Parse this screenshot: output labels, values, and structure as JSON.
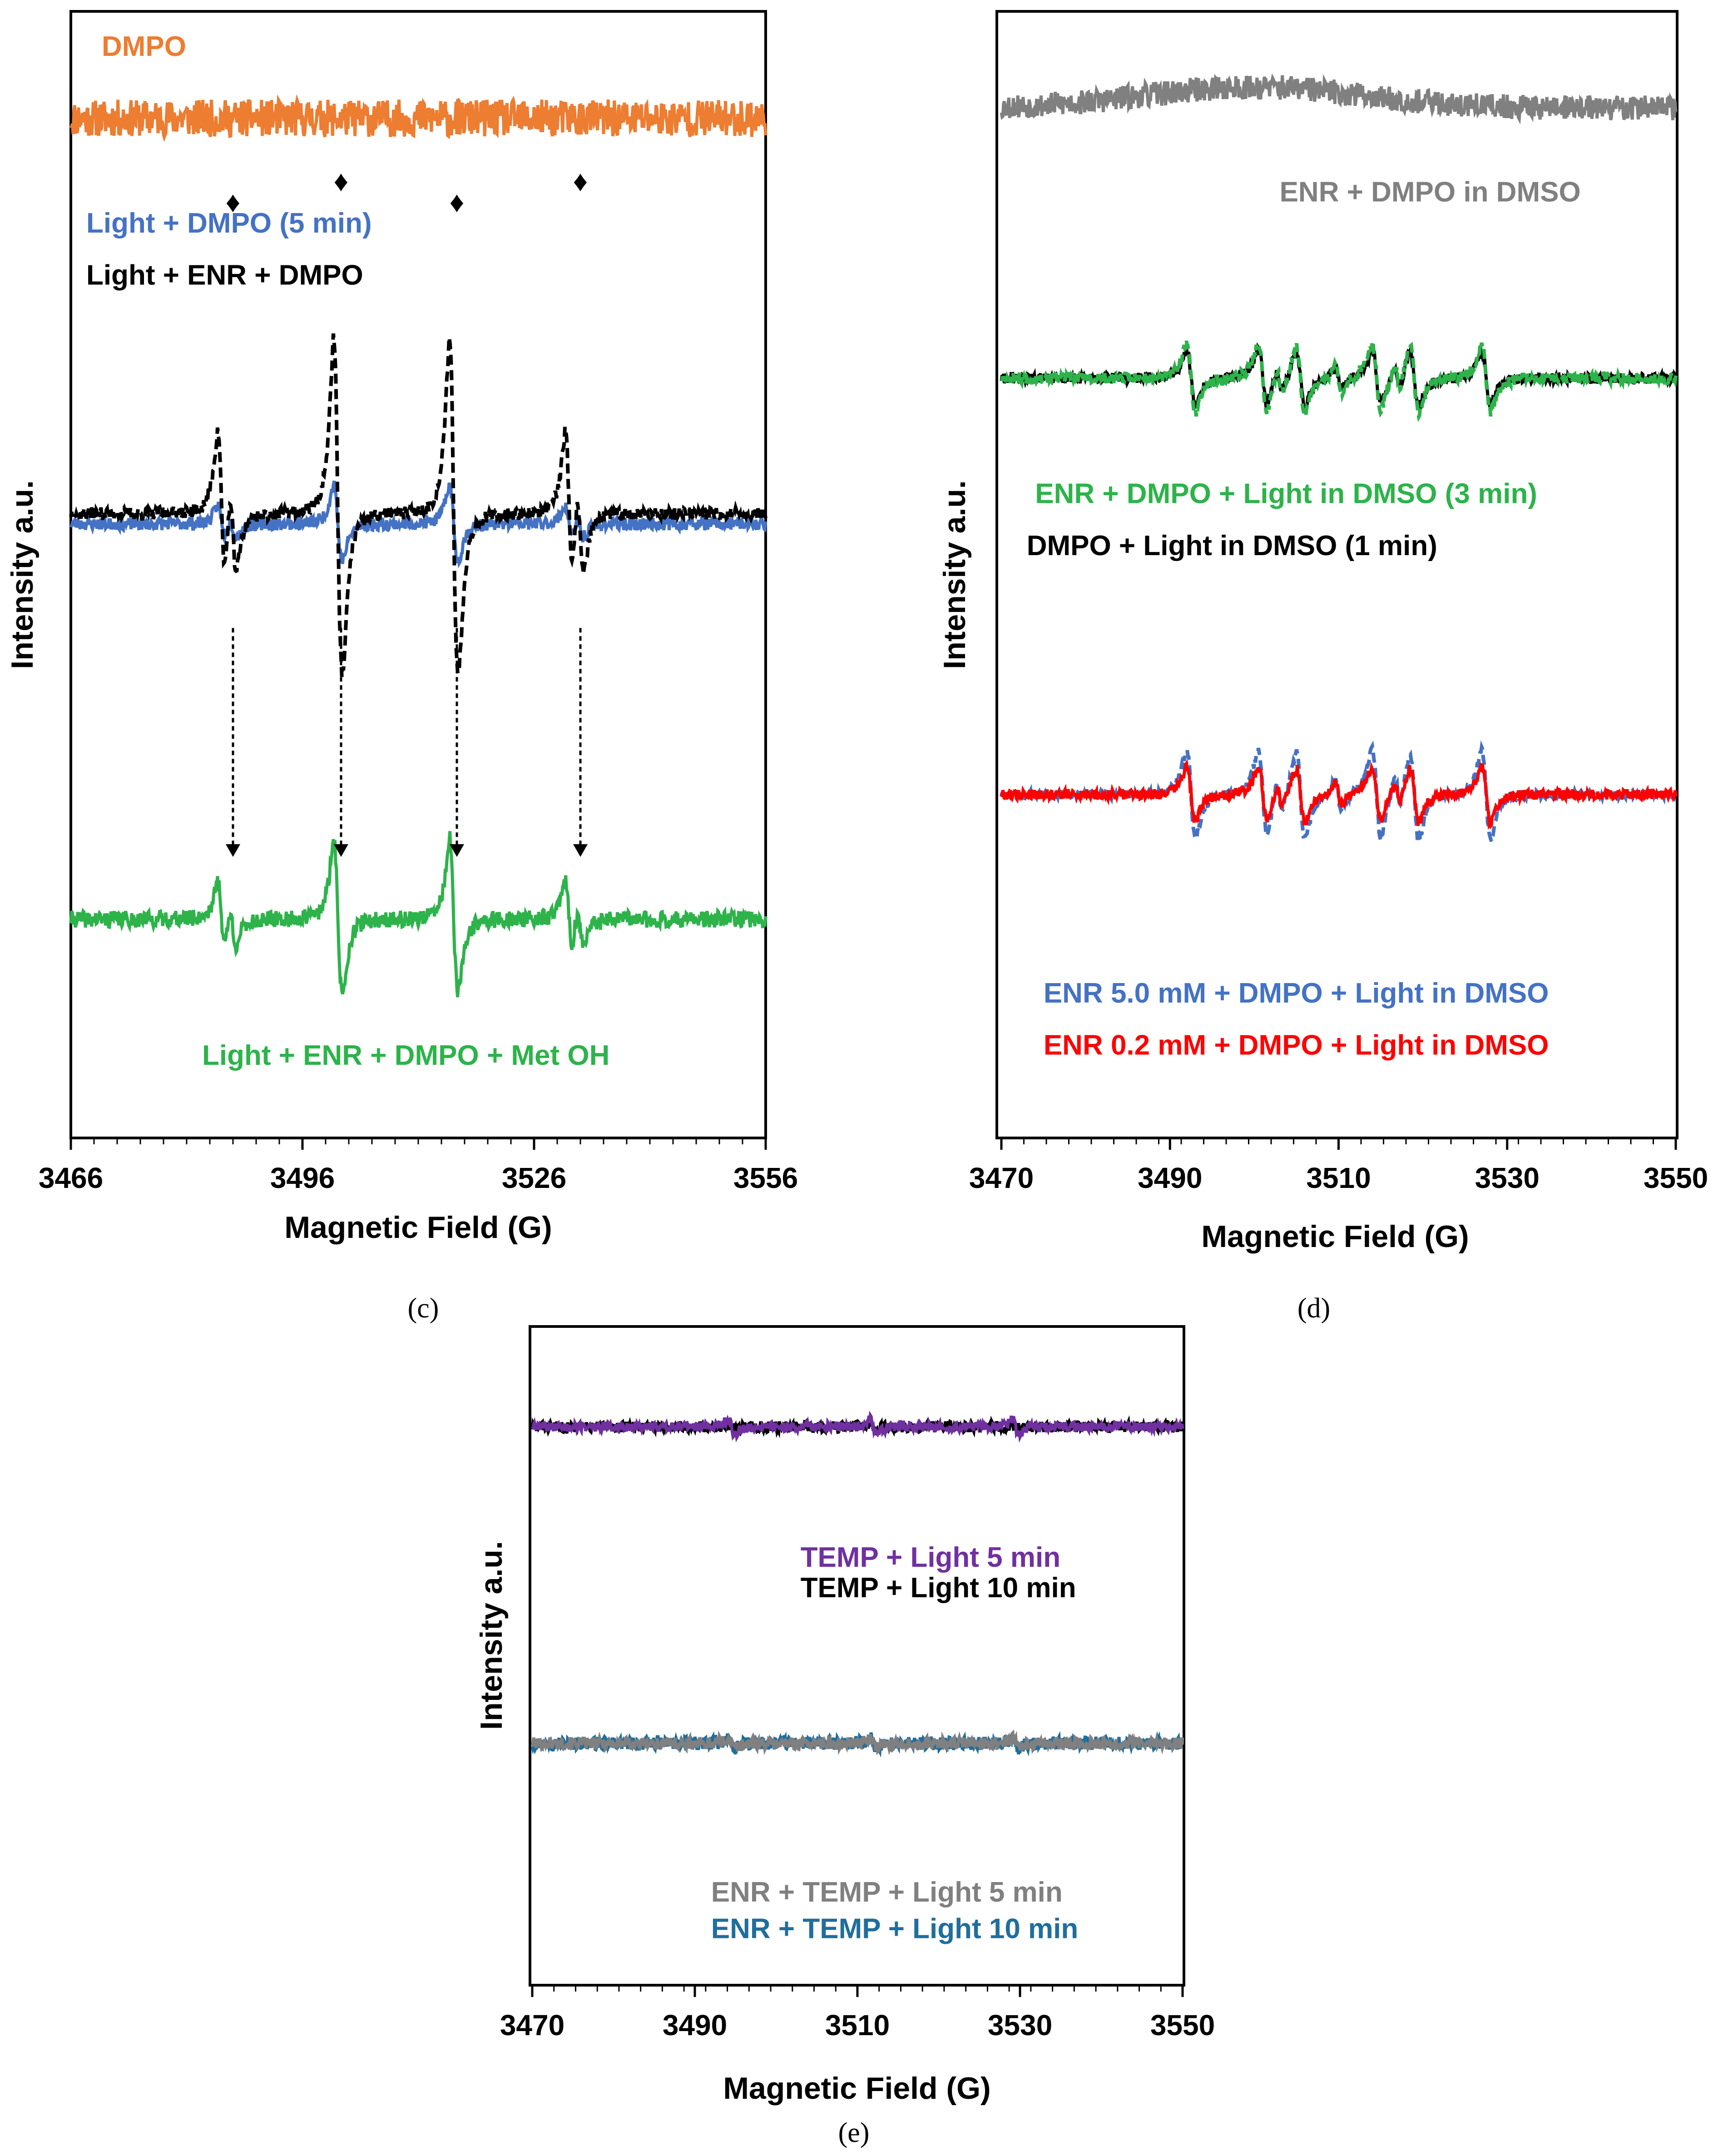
{
  "colors": {
    "orange": "#ED7D31",
    "blue": "#4472C4",
    "black": "#000000",
    "green": "#2DB34A",
    "gray": "#808080",
    "red": "#FF0000",
    "purple": "#7030A0",
    "teal": "#1F6E9C"
  },
  "chart_data": [
    {
      "id": "c",
      "type": "line",
      "caption": "(c)",
      "xlabel": "Magnetic Field (G)",
      "ylabel": "Intensity a.u.",
      "xlim": [
        3466,
        3556
      ],
      "xticks": [
        "3466",
        "3496",
        "3526",
        "3556"
      ],
      "xtick_values": [
        3466,
        3496,
        3526,
        3556
      ],
      "ylim": [
        0,
        100
      ],
      "markers": [
        "♦",
        "♦",
        "♦",
        "♦"
      ],
      "marker_x": [
        3487,
        3501,
        3516,
        3532
      ],
      "series": [
        {
          "name": "DMPO",
          "color": "orange",
          "style": "solid",
          "baseline": 93,
          "type": "noise",
          "noise": 1.8,
          "seed": 11
        },
        {
          "name": "Light + DMPO (5 min)",
          "color": "blue",
          "style": "solid",
          "baseline": 54,
          "type": "dmpo_oh",
          "center": 3508,
          "aN": 15,
          "amp": 5,
          "noise": 0.6,
          "seed": 23
        },
        {
          "name": "Light + ENR + DMPO",
          "color": "black",
          "style": "dashed",
          "baseline": 55,
          "type": "dmpo_oh",
          "center": 3508,
          "aN": 15,
          "amp": 22,
          "noise": 0.6,
          "seed": 37
        },
        {
          "name": "Light + ENR + DMPO + Met OH",
          "color": "green",
          "style": "solid",
          "baseline": 16,
          "type": "dmpo_oh",
          "center": 3508,
          "aN": 15,
          "amp": 10,
          "noise": 0.8,
          "seed": 41
        }
      ],
      "labels": [
        {
          "text": "DMPO",
          "color": "orange",
          "x": 3470,
          "y": 99
        },
        {
          "text": "Light + DMPO (5 min)",
          "color": "blue",
          "x": 3468,
          "y": 82
        },
        {
          "text": "Light + ENR + DMPO",
          "color": "black",
          "x": 3468,
          "y": 77
        },
        {
          "text": "Light + ENR + DMPO + Met OH",
          "color": "green",
          "x": 3483,
          "y": 2
        }
      ]
    },
    {
      "id": "d",
      "type": "line",
      "caption": "(d)",
      "xlabel": "Magnetic Field (G)",
      "ylabel": "Intensity a.u.",
      "xlim": [
        3470,
        3550
      ],
      "xticks": [
        "3470",
        "3490",
        "3510",
        "3530",
        "3550"
      ],
      "xtick_values": [
        3470,
        3490,
        3510,
        3530,
        3550
      ],
      "ylim": [
        0,
        100
      ],
      "series": [
        {
          "name": "ENR + DMPO in DMSO",
          "color": "gray",
          "style": "solid",
          "baseline": 94,
          "type": "noise",
          "noise": 1.2,
          "bump": 2,
          "seed": 53
        },
        {
          "name": "DMPO + Light in DMSO (1 min)",
          "color": "black",
          "style": "solid",
          "baseline": 68,
          "type": "six_line",
          "center": 3510,
          "amp": 8,
          "noise": 0.5,
          "seed": 61
        },
        {
          "name": "ENR + DMPO + Light in DMSO (3 min)",
          "color": "green",
          "style": "dashed",
          "baseline": 68,
          "type": "six_line",
          "center": 3510,
          "amp": 10,
          "noise": 0.5,
          "seed": 67
        },
        {
          "name": "ENR 5.0 mM + DMPO + Light in DMSO",
          "color": "blue",
          "style": "dashed",
          "baseline": 28,
          "type": "six_line",
          "center": 3510,
          "amp": 13,
          "noise": 0.4,
          "seed": 71
        },
        {
          "name": "ENR 0.2 mM + DMPO + Light in DMSO",
          "color": "red",
          "style": "solid",
          "baseline": 28,
          "type": "six_line",
          "center": 3510,
          "amp": 8,
          "noise": 0.5,
          "seed": 79
        }
      ],
      "labels": [
        {
          "text": "ENR + DMPO in DMSO",
          "color": "gray",
          "x": 3503,
          "y": 85
        },
        {
          "text": "ENR + DMPO + Light in DMSO (3 min)",
          "color": "green",
          "x": 3474,
          "y": 56
        },
        {
          "text": "DMPO + Light in DMSO (1 min)",
          "color": "black",
          "x": 3473,
          "y": 51
        },
        {
          "text": "ENR 5.0 mM + DMPO + Light in DMSO",
          "color": "blue",
          "x": 3475,
          "y": 8
        },
        {
          "text": "ENR 0.2 mM + DMPO + Light in DMSO",
          "color": "red",
          "x": 3475,
          "y": 3
        }
      ]
    },
    {
      "id": "e",
      "type": "line",
      "caption": "(e)",
      "xlabel": "Magnetic Field (G)",
      "ylabel": "Intensity a.u.",
      "xlim": [
        3470,
        3550
      ],
      "xticks": [
        "3470",
        "3490",
        "3510",
        "3530",
        "3550"
      ],
      "xtick_values": [
        3470,
        3490,
        3510,
        3530,
        3550
      ],
      "ylim": [
        0,
        100
      ],
      "series": [
        {
          "name": "TEMP + Light 10 min",
          "color": "black",
          "style": "solid",
          "baseline": 88,
          "type": "three_line",
          "center": 3512,
          "aN": 17.5,
          "amp": 0.8,
          "noise": 0.9,
          "seed": 83
        },
        {
          "name": "TEMP + Light 5 min",
          "color": "purple",
          "style": "solid",
          "baseline": 88,
          "type": "three_line",
          "center": 3512,
          "aN": 17.5,
          "amp": 4,
          "noise": 0.8,
          "seed": 89
        },
        {
          "name": "ENR + TEMP + Light 10 min",
          "color": "teal",
          "style": "solid",
          "baseline": 36,
          "type": "three_line",
          "center": 3512,
          "aN": 17.5,
          "amp": 2.5,
          "noise": 1.1,
          "seed": 97
        },
        {
          "name": "ENR + TEMP + Light 5 min",
          "color": "gray",
          "style": "solid",
          "baseline": 36,
          "type": "three_line",
          "center": 3512,
          "aN": 17.5,
          "amp": 2.2,
          "noise": 1.0,
          "seed": 101
        }
      ],
      "labels": [
        {
          "text": "TEMP + Light 5 min",
          "color": "purple",
          "x": 3503,
          "y": 65
        },
        {
          "text": "TEMP + Light 10 min",
          "color": "black",
          "x": 3503,
          "y": 60
        },
        {
          "text": "ENR + TEMP + Light 5 min",
          "color": "gray",
          "x": 3492,
          "y": 10
        },
        {
          "text": "ENR + TEMP + Light 10 min",
          "color": "teal",
          "x": 3492,
          "y": 4
        }
      ]
    }
  ]
}
